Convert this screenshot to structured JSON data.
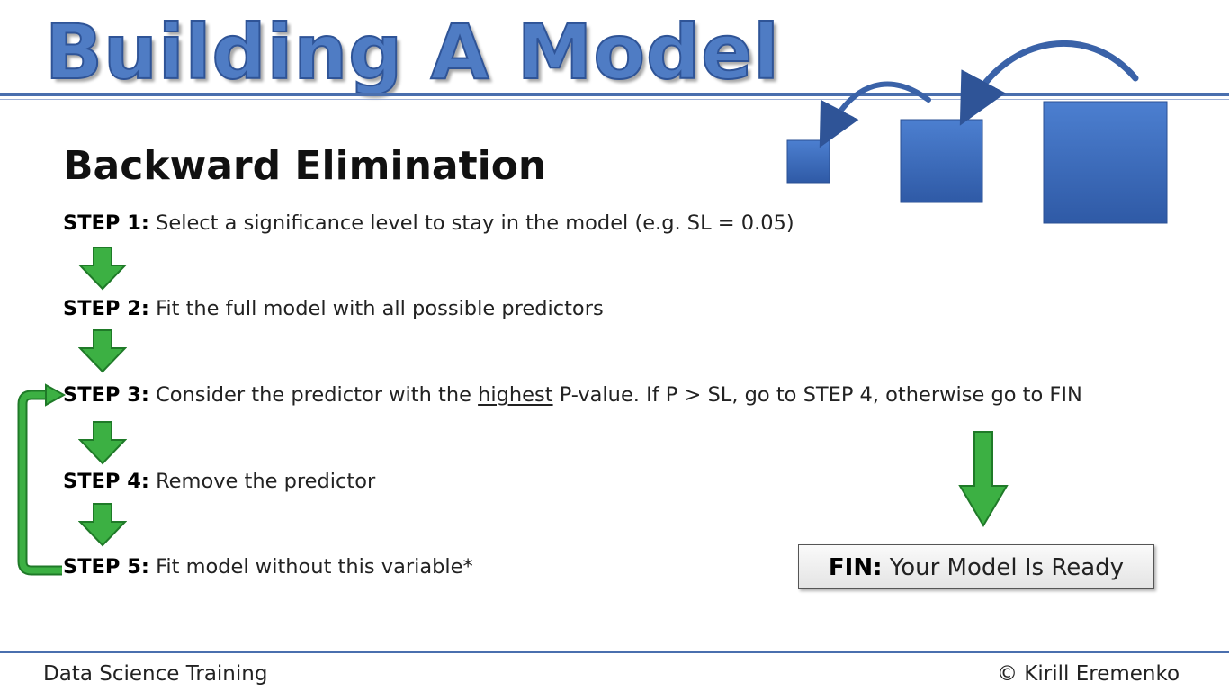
{
  "title": "Building A Model",
  "subtitle": "Backward Elimination",
  "steps": [
    {
      "label": "STEP 1:",
      "text": "Select a significance level to stay in the model (e.g. SL = 0.05)"
    },
    {
      "label": "STEP 2:",
      "text": "Fit the full model with all possible predictors"
    },
    {
      "label": "STEP 3:",
      "text_before": "Consider the predictor with the",
      "underlined": "highest",
      "text_after": "P-value. If P > SL, go to STEP 4, otherwise go to FIN"
    },
    {
      "label": "STEP 4:",
      "text": "Remove the predictor"
    },
    {
      "label": "STEP 5:",
      "text": "Fit model without this variable*"
    }
  ],
  "fin": {
    "label": "FIN:",
    "text": "Your Model Is Ready"
  },
  "footer": {
    "left": "Data Science Training",
    "right": "© Kirill Eremenko"
  },
  "colors": {
    "title_blue": "#4f7cc4",
    "rule_blue": "#4a6fae",
    "arrow_green": "#3cb043",
    "box_blue": "#3f6fbf"
  }
}
